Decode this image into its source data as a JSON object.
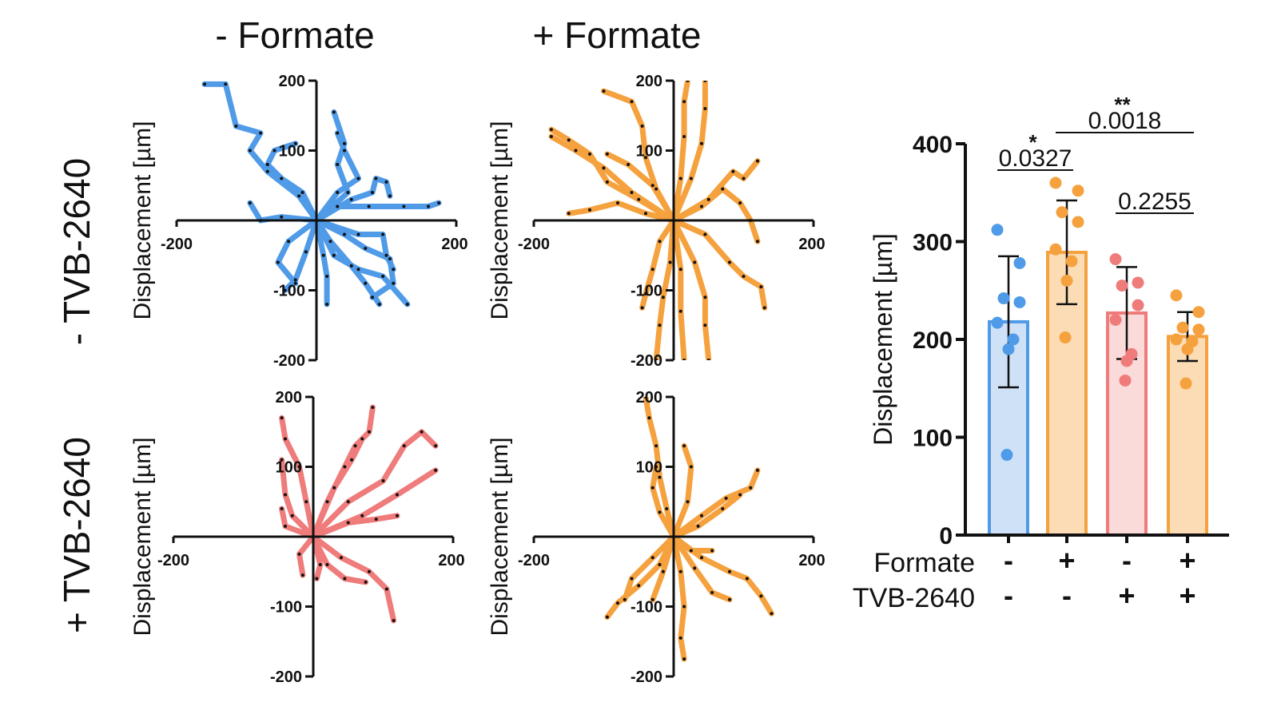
{
  "column_headers": [
    "- Formate",
    "+ Formate"
  ],
  "row_headers": [
    "- TVB-2640",
    "+ TVB-2640"
  ],
  "colors": {
    "blue": "#4f9be8",
    "orange": "#f5a13e",
    "pink": "#ef7b7b",
    "blue_fill": "#cfe1f7",
    "orange_fill": "#fbdcb5",
    "pink_fill": "#fbdada"
  },
  "chart_data": [
    {
      "type": "scatter",
      "panel": "- Formate / - TVB-2640",
      "ylabel": "Displacement [µm]",
      "xlim": [
        -200,
        200
      ],
      "ylim": [
        -200,
        200
      ],
      "xticks": [
        "-200",
        "200"
      ],
      "yticks": [
        "200",
        "100",
        "-100",
        "-200"
      ],
      "color": "blue",
      "tracks": [
        [
          [
            0,
            0
          ],
          [
            -25,
            35
          ],
          [
            -70,
            70
          ],
          [
            -95,
            100
          ],
          [
            -80,
            125
          ],
          [
            -115,
            135
          ],
          [
            -130,
            195
          ],
          [
            -160,
            195
          ]
        ],
        [
          [
            0,
            0
          ],
          [
            30,
            20
          ],
          [
            75,
            20
          ],
          [
            125,
            20
          ],
          [
            160,
            20
          ],
          [
            175,
            25
          ]
        ],
        [
          [
            0,
            0
          ],
          [
            25,
            -50
          ],
          [
            60,
            -70
          ],
          [
            95,
            -80
          ],
          [
            130,
            -120
          ]
        ],
        [
          [
            0,
            0
          ],
          [
            45,
            40
          ],
          [
            30,
            80
          ],
          [
            40,
            110
          ],
          [
            25,
            155
          ]
        ],
        [
          [
            0,
            0
          ],
          [
            40,
            -20
          ],
          [
            70,
            -40
          ],
          [
            105,
            -55
          ],
          [
            110,
            -90
          ],
          [
            80,
            -110
          ]
        ],
        [
          [
            0,
            0
          ],
          [
            -15,
            -45
          ],
          [
            -30,
            -85
          ],
          [
            -45,
            -100
          ]
        ],
        [
          [
            0,
            0
          ],
          [
            10,
            -50
          ],
          [
            15,
            -80
          ],
          [
            15,
            -120
          ]
        ],
        [
          [
            0,
            0
          ],
          [
            -20,
            40
          ],
          [
            -50,
            60
          ],
          [
            -70,
            80
          ],
          [
            -60,
            100
          ],
          [
            -30,
            110
          ]
        ],
        [
          [
            0,
            0
          ],
          [
            50,
            30
          ],
          [
            80,
            40
          ],
          [
            85,
            60
          ],
          [
            100,
            55
          ],
          [
            105,
            35
          ]
        ],
        [
          [
            0,
            0
          ],
          [
            60,
            -20
          ],
          [
            95,
            -20
          ],
          [
            100,
            -50
          ],
          [
            110,
            -70
          ]
        ],
        [
          [
            0,
            0
          ],
          [
            -40,
            -30
          ],
          [
            -55,
            -60
          ],
          [
            -30,
            -90
          ]
        ],
        [
          [
            0,
            0
          ],
          [
            30,
            40
          ],
          [
            60,
            60
          ],
          [
            40,
            100
          ],
          [
            30,
            125
          ]
        ],
        [
          [
            0,
            0
          ],
          [
            20,
            -30
          ],
          [
            50,
            -65
          ],
          [
            70,
            -90
          ],
          [
            90,
            -120
          ]
        ],
        [
          [
            0,
            0
          ],
          [
            -50,
            5
          ],
          [
            -80,
            0
          ],
          [
            -95,
            25
          ]
        ]
      ]
    },
    {
      "type": "scatter",
      "panel": "+ Formate / - TVB-2640",
      "ylabel": "Displacement [µm]",
      "xlim": [
        -200,
        200
      ],
      "ylim": [
        -200,
        200
      ],
      "xticks": [
        "-200",
        "200"
      ],
      "yticks": [
        "200",
        "100",
        "-100",
        "-200"
      ],
      "color": "orange",
      "tracks": [
        [
          [
            0,
            0
          ],
          [
            -60,
            40
          ],
          [
            -100,
            75
          ],
          [
            -140,
            100
          ],
          [
            -175,
            120
          ]
        ],
        [
          [
            0,
            0
          ],
          [
            -50,
            30
          ],
          [
            -95,
            55
          ],
          [
            -120,
            95
          ],
          [
            -150,
            115
          ],
          [
            -175,
            130
          ]
        ],
        [
          [
            0,
            0
          ],
          [
            -25,
            45
          ],
          [
            -40,
            90
          ],
          [
            -45,
            135
          ],
          [
            -60,
            170
          ],
          [
            -100,
            185
          ]
        ],
        [
          [
            0,
            0
          ],
          [
            10,
            60
          ],
          [
            15,
            120
          ],
          [
            15,
            170
          ],
          [
            20,
            200
          ]
        ],
        [
          [
            0,
            0
          ],
          [
            25,
            60
          ],
          [
            40,
            110
          ],
          [
            45,
            160
          ],
          [
            45,
            200
          ]
        ],
        [
          [
            0,
            0
          ],
          [
            45,
            -20
          ],
          [
            80,
            -60
          ],
          [
            100,
            -80
          ],
          [
            125,
            -95
          ],
          [
            130,
            -125
          ]
        ],
        [
          [
            0,
            0
          ],
          [
            30,
            -60
          ],
          [
            45,
            -110
          ],
          [
            45,
            -150
          ],
          [
            50,
            -200
          ]
        ],
        [
          [
            0,
            0
          ],
          [
            10,
            -70
          ],
          [
            10,
            -130
          ],
          [
            15,
            -200
          ]
        ],
        [
          [
            0,
            0
          ],
          [
            -5,
            -60
          ],
          [
            -15,
            -110
          ],
          [
            -20,
            -150
          ],
          [
            -25,
            -200
          ]
        ],
        [
          [
            0,
            0
          ],
          [
            50,
            30
          ],
          [
            85,
            70
          ],
          [
            100,
            60
          ],
          [
            120,
            85
          ]
        ],
        [
          [
            0,
            0
          ],
          [
            40,
            20
          ],
          [
            70,
            45
          ],
          [
            95,
            25
          ],
          [
            110,
            0
          ],
          [
            120,
            -30
          ]
        ],
        [
          [
            0,
            0
          ],
          [
            -40,
            10
          ],
          [
            -80,
            25
          ],
          [
            -120,
            15
          ],
          [
            -150,
            10
          ]
        ],
        [
          [
            0,
            0
          ],
          [
            -30,
            50
          ],
          [
            -65,
            80
          ],
          [
            -95,
            95
          ]
        ],
        [
          [
            0,
            0
          ],
          [
            -20,
            -30
          ],
          [
            -30,
            -70
          ],
          [
            -40,
            -105
          ],
          [
            -45,
            -125
          ]
        ]
      ]
    },
    {
      "type": "scatter",
      "panel": "- Formate / + TVB-2640",
      "ylabel": "Displacement [µm]",
      "xlim": [
        -200,
        200
      ],
      "ylim": [
        -200,
        200
      ],
      "xticks": [
        "-200",
        "200"
      ],
      "yticks": [
        "200",
        "100",
        "-100",
        "-200"
      ],
      "color": "pink",
      "tracks": [
        [
          [
            0,
            0
          ],
          [
            50,
            50
          ],
          [
            100,
            80
          ],
          [
            130,
            130
          ],
          [
            155,
            150
          ],
          [
            175,
            130
          ]
        ],
        [
          [
            0,
            0
          ],
          [
            70,
            30
          ],
          [
            120,
            60
          ],
          [
            175,
            95
          ]
        ],
        [
          [
            0,
            0
          ],
          [
            20,
            50
          ],
          [
            45,
            100
          ],
          [
            60,
            130
          ],
          [
            80,
            150
          ],
          [
            85,
            185
          ]
        ],
        [
          [
            0,
            0
          ],
          [
            -10,
            50
          ],
          [
            -20,
            100
          ],
          [
            -40,
            140
          ],
          [
            -45,
            170
          ]
        ],
        [
          [
            0,
            0
          ],
          [
            -30,
            30
          ],
          [
            -40,
            60
          ],
          [
            -45,
            110
          ]
        ],
        [
          [
            0,
            0
          ],
          [
            40,
            -30
          ],
          [
            80,
            -50
          ],
          [
            105,
            -75
          ],
          [
            115,
            -120
          ]
        ],
        [
          [
            0,
            0
          ],
          [
            20,
            -40
          ],
          [
            45,
            -60
          ],
          [
            75,
            -65
          ]
        ],
        [
          [
            0,
            0
          ],
          [
            -20,
            -25
          ],
          [
            -15,
            -55
          ]
        ],
        [
          [
            0,
            0
          ],
          [
            50,
            20
          ],
          [
            90,
            25
          ],
          [
            120,
            30
          ]
        ],
        [
          [
            0,
            0
          ],
          [
            30,
            70
          ],
          [
            55,
            110
          ],
          [
            70,
            140
          ]
        ],
        [
          [
            0,
            0
          ],
          [
            -40,
            15
          ],
          [
            -45,
            40
          ]
        ],
        [
          [
            0,
            0
          ],
          [
            10,
            -40
          ],
          [
            5,
            -60
          ]
        ]
      ]
    },
    {
      "type": "scatter",
      "panel": "+ Formate / + TVB-2640",
      "ylabel": "Displacement [µm]",
      "xlim": [
        -200,
        200
      ],
      "ylim": [
        -200,
        200
      ],
      "xticks": [
        "-200",
        "200"
      ],
      "yticks": [
        "200",
        "100",
        "-100",
        "-200"
      ],
      "color": "orange",
      "tracks": [
        [
          [
            0,
            0
          ],
          [
            40,
            -30
          ],
          [
            80,
            -50
          ],
          [
            105,
            -60
          ],
          [
            125,
            -85
          ],
          [
            140,
            -110
          ]
        ],
        [
          [
            0,
            0
          ],
          [
            40,
            30
          ],
          [
            75,
            55
          ],
          [
            110,
            70
          ],
          [
            120,
            95
          ]
        ],
        [
          [
            0,
            0
          ],
          [
            -20,
            -40
          ],
          [
            -50,
            -70
          ],
          [
            -80,
            -95
          ],
          [
            -95,
            -115
          ]
        ],
        [
          [
            0,
            0
          ],
          [
            -30,
            -30
          ],
          [
            -60,
            -60
          ],
          [
            -70,
            -90
          ]
        ],
        [
          [
            0,
            0
          ],
          [
            -10,
            40
          ],
          [
            -20,
            85
          ],
          [
            -25,
            130
          ],
          [
            -35,
            170
          ],
          [
            -40,
            200
          ]
        ],
        [
          [
            0,
            0
          ],
          [
            20,
            50
          ],
          [
            25,
            100
          ],
          [
            15,
            130
          ]
        ],
        [
          [
            0,
            0
          ],
          [
            10,
            -50
          ],
          [
            15,
            -100
          ],
          [
            10,
            -145
          ],
          [
            15,
            -175
          ]
        ],
        [
          [
            0,
            0
          ],
          [
            -20,
            35
          ],
          [
            -30,
            70
          ],
          [
            -25,
            100
          ]
        ],
        [
          [
            0,
            0
          ],
          [
            30,
            -45
          ],
          [
            55,
            -80
          ],
          [
            80,
            -90
          ]
        ],
        [
          [
            0,
            0
          ],
          [
            35,
            15
          ],
          [
            70,
            40
          ],
          [
            95,
            60
          ]
        ],
        [
          [
            0,
            0
          ],
          [
            -15,
            -50
          ],
          [
            -30,
            -90
          ]
        ],
        [
          [
            0,
            0
          ],
          [
            25,
            -20
          ],
          [
            55,
            -20
          ]
        ]
      ]
    },
    {
      "type": "bar",
      "ylabel": "Displacement [µm]",
      "ylim": [
        0,
        400
      ],
      "yticks": [
        "0",
        "100",
        "200",
        "300",
        "400"
      ],
      "conditions": {
        "rows": [
          {
            "label": "Formate",
            "values": [
              "-",
              "+",
              "-",
              "+"
            ]
          },
          {
            "label": "TVB-2640",
            "values": [
              "-",
              "-",
              "+",
              "+"
            ]
          }
        ]
      },
      "bars": [
        {
          "color": "blue",
          "mean": 218,
          "sd": 67,
          "points": [
            312,
            278,
            242,
            238,
            217,
            200,
            190,
            82
          ]
        },
        {
          "color": "orange",
          "mean": 289,
          "sd": 53,
          "points": [
            360,
            352,
            330,
            320,
            292,
            280,
            260,
            202
          ]
        },
        {
          "color": "pink",
          "mean": 227,
          "sd": 47,
          "points": [
            282,
            258,
            255,
            235,
            220,
            185,
            178,
            158
          ]
        },
        {
          "color": "orange",
          "mean": 203,
          "sd": 25,
          "points": [
            245,
            228,
            212,
            210,
            200,
            198,
            190,
            155
          ]
        }
      ],
      "comparisons": [
        {
          "from": 0,
          "to": 1,
          "p": "0.0327",
          "stars": "*"
        },
        {
          "from": 1,
          "to": 3,
          "p": "0.0018",
          "stars": "**"
        },
        {
          "from": 2,
          "to": 3,
          "p": "0.2255",
          "stars": ""
        }
      ]
    }
  ]
}
